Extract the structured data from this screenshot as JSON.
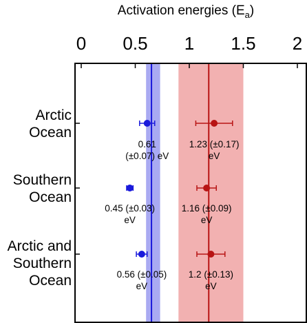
{
  "chart_data": {
    "type": "scatter",
    "title_main": "Activation energies (E",
    "title_sub": "a",
    "title_close": ")",
    "xlim": [
      0,
      2
    ],
    "x_ticks": [
      {
        "value": 0,
        "label": "0"
      },
      {
        "value": 0.5,
        "label": "0.5"
      },
      {
        "value": 1,
        "label": "1"
      },
      {
        "value": 1.5,
        "label": "1.5"
      },
      {
        "value": 2,
        "label": "2"
      }
    ],
    "grid": false,
    "categories": [
      {
        "lines": [
          "Arctic",
          "Ocean"
        ]
      },
      {
        "lines": [
          "Southern",
          "Ocean"
        ]
      },
      {
        "lines": [
          "Arctic and",
          "Southern",
          "Ocean"
        ]
      }
    ],
    "series": [
      {
        "color": "#1a1adb",
        "points": [
          {
            "value": 0.61,
            "err": 0.07,
            "label_lines": [
              "0.61",
              "(±0.07) eV"
            ]
          },
          {
            "value": 0.45,
            "err": 0.03,
            "label_lines": [
              "0.45 (±0.03)",
              "eV"
            ]
          },
          {
            "value": 0.56,
            "err": 0.05,
            "label_lines": [
              "0.56 (±0.05)",
              "eV"
            ]
          }
        ],
        "reference_line": 0.65,
        "band": [
          0.6,
          0.73
        ],
        "band_color": "#a9aaf2"
      },
      {
        "color": "#b81414",
        "points": [
          {
            "value": 1.23,
            "err": 0.17,
            "label_lines": [
              "1.23 (±0.17)",
              "eV"
            ]
          },
          {
            "value": 1.16,
            "err": 0.09,
            "label_lines": [
              "1.16 (±0.09)",
              "eV"
            ]
          },
          {
            "value": 1.2,
            "err": 0.13,
            "label_lines": [
              "1.2 (±0.13)",
              "eV"
            ]
          }
        ],
        "reference_line": 1.18,
        "band": [
          0.9,
          1.5
        ],
        "band_color": "#f2b1b1"
      }
    ]
  }
}
